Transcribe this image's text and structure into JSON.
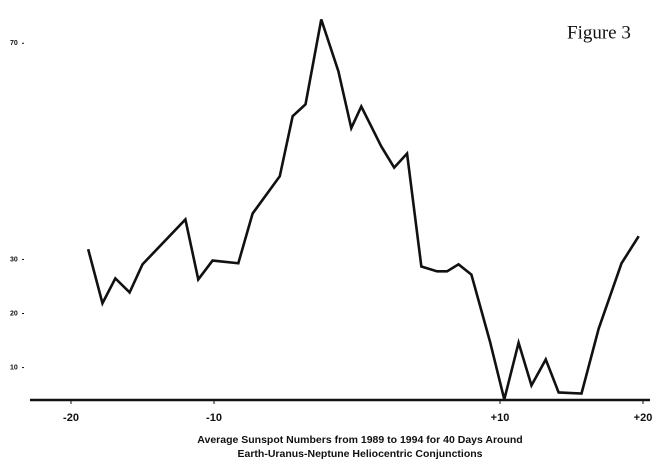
{
  "chart_data": {
    "type": "line",
    "title": "Figure 3",
    "xlabel": [
      "Average Sunspot Numbers from 1989 to 1994 for 40 Days Around",
      "Earth-Uranus-Neptune Heliocentric Conjunctions"
    ],
    "xlim": [
      -20,
      20
    ],
    "xticks": [
      -20,
      -10,
      {
        "value": 10,
        "label": "+10"
      },
      {
        "value": 20,
        "label": "+20"
      }
    ],
    "ylim": [
      4,
      78
    ],
    "yticks": [
      10,
      20,
      30,
      70
    ],
    "color": "#111111",
    "grid": false,
    "series": [
      {
        "name": "Average Sunspot Numbers",
        "x": [
          -18.8,
          -17.8,
          -16.9,
          -15.9,
          -15.0,
          -12.0,
          -11.1,
          -10.1,
          -8.3,
          -7.3,
          -5.4,
          -4.5,
          -3.6,
          -2.5,
          -1.3,
          -0.4,
          0.3,
          1.7,
          2.6,
          3.5,
          4.5,
          5.6,
          6.3,
          7.1,
          8.0,
          9.3,
          10.3,
          11.3,
          12.2,
          13.2,
          14.1,
          15.7,
          16.9,
          18.5,
          19.7
        ],
        "values": [
          31.9,
          21.9,
          26.5,
          23.9,
          29.1,
          37.4,
          26.3,
          29.8,
          29.3,
          38.5,
          45.4,
          56.5,
          58.7,
          74.4,
          64.8,
          54.3,
          58.3,
          50.9,
          47.0,
          49.6,
          28.7,
          27.8,
          27.8,
          29.1,
          27.2,
          14.8,
          4.1,
          14.6,
          6.7,
          11.5,
          5.4,
          5.2,
          17.2,
          29.3,
          34.3
        ]
      }
    ]
  }
}
